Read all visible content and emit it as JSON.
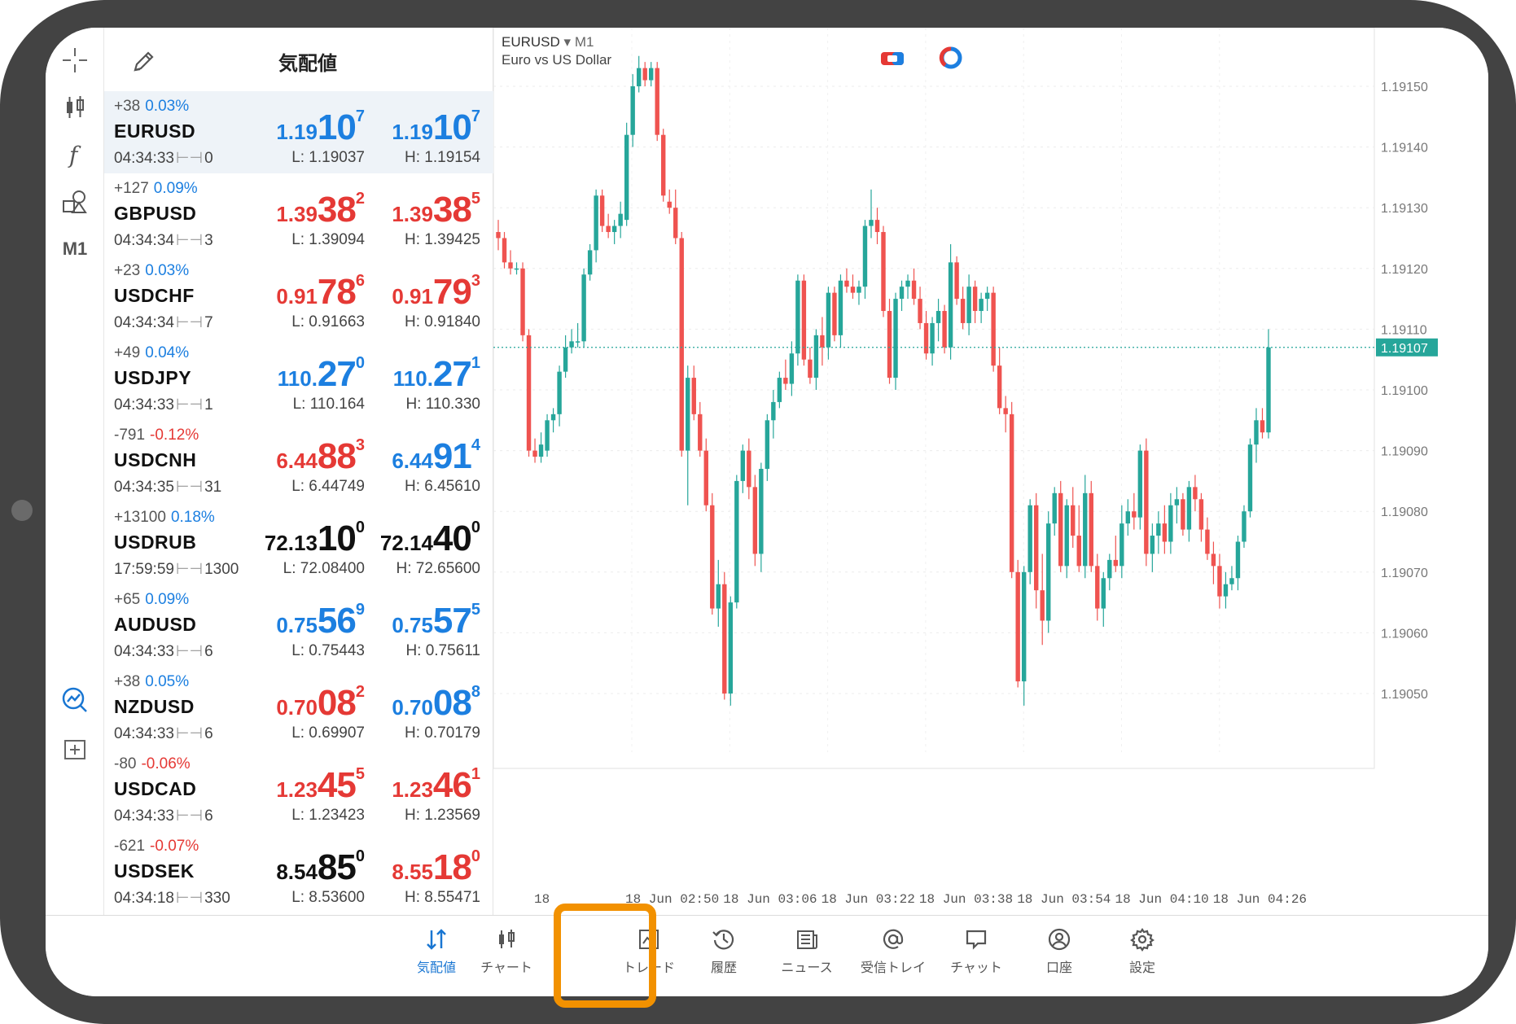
{
  "quotes_panel": {
    "title": "気配値",
    "rows": [
      {
        "change_points": "+38",
        "change_pct": "0.03%",
        "pct_color": "#1c7fe0",
        "symbol": "EURUSD",
        "time": "04:34:33",
        "spread": "0",
        "bid": {
          "small": "1.19",
          "big": "10",
          "sup": "7",
          "color": "#1c7fe0"
        },
        "ask": {
          "small": "1.19",
          "big": "10",
          "sup": "7",
          "color": "#1c7fe0"
        },
        "low": "L: 1.19037",
        "high": "H: 1.19154",
        "selected": true
      },
      {
        "change_points": "+127",
        "change_pct": "0.09%",
        "pct_color": "#1c7fe0",
        "symbol": "GBPUSD",
        "time": "04:34:34",
        "spread": "3",
        "bid": {
          "small": "1.39",
          "big": "38",
          "sup": "2",
          "color": "#e53935"
        },
        "ask": {
          "small": "1.39",
          "big": "38",
          "sup": "5",
          "color": "#e53935"
        },
        "low": "L: 1.39094",
        "high": "H: 1.39425"
      },
      {
        "change_points": "+23",
        "change_pct": "0.03%",
        "pct_color": "#1c7fe0",
        "symbol": "USDCHF",
        "time": "04:34:34",
        "spread": "7",
        "bid": {
          "small": "0.91",
          "big": "78",
          "sup": "6",
          "color": "#e53935"
        },
        "ask": {
          "small": "0.91",
          "big": "79",
          "sup": "3",
          "color": "#e53935"
        },
        "low": "L: 0.91663",
        "high": "H: 0.91840"
      },
      {
        "change_points": "+49",
        "change_pct": "0.04%",
        "pct_color": "#1c7fe0",
        "symbol": "USDJPY",
        "time": "04:34:33",
        "spread": "1",
        "bid": {
          "small": "110.",
          "big": "27",
          "sup": "0",
          "color": "#1c7fe0"
        },
        "ask": {
          "small": "110.",
          "big": "27",
          "sup": "1",
          "color": "#1c7fe0"
        },
        "low": "L: 110.164",
        "high": "H: 110.330"
      },
      {
        "change_points": "-791",
        "change_pct": "-0.12%",
        "pct_color": "#e53935",
        "symbol": "USDCNH",
        "time": "04:34:35",
        "spread": "31",
        "bid": {
          "small": "6.44",
          "big": "88",
          "sup": "3",
          "color": "#e53935"
        },
        "ask": {
          "small": "6.44",
          "big": "91",
          "sup": "4",
          "color": "#1c7fe0"
        },
        "low": "L: 6.44749",
        "high": "H: 6.45610"
      },
      {
        "change_points": "+13100",
        "change_pct": "0.18%",
        "pct_color": "#1c7fe0",
        "symbol": "USDRUB",
        "time": "17:59:59",
        "spread": "1300",
        "bid": {
          "small": "72.13",
          "big": "10",
          "sup": "0",
          "color": "#111111"
        },
        "ask": {
          "small": "72.14",
          "big": "40",
          "sup": "0",
          "color": "#111111"
        },
        "low": "L: 72.08400",
        "high": "H: 72.65600"
      },
      {
        "change_points": "+65",
        "change_pct": "0.09%",
        "pct_color": "#1c7fe0",
        "symbol": "AUDUSD",
        "time": "04:34:33",
        "spread": "6",
        "bid": {
          "small": "0.75",
          "big": "56",
          "sup": "9",
          "color": "#1c7fe0"
        },
        "ask": {
          "small": "0.75",
          "big": "57",
          "sup": "5",
          "color": "#1c7fe0"
        },
        "low": "L: 0.75443",
        "high": "H: 0.75611"
      },
      {
        "change_points": "+38",
        "change_pct": "0.05%",
        "pct_color": "#1c7fe0",
        "symbol": "NZDUSD",
        "time": "04:34:33",
        "spread": "6",
        "bid": {
          "small": "0.70",
          "big": "08",
          "sup": "2",
          "color": "#e53935"
        },
        "ask": {
          "small": "0.70",
          "big": "08",
          "sup": "8",
          "color": "#1c7fe0"
        },
        "low": "L: 0.69907",
        "high": "H: 0.70179"
      },
      {
        "change_points": "-80",
        "change_pct": "-0.06%",
        "pct_color": "#e53935",
        "symbol": "USDCAD",
        "time": "04:34:33",
        "spread": "6",
        "bid": {
          "small": "1.23",
          "big": "45",
          "sup": "5",
          "color": "#e53935"
        },
        "ask": {
          "small": "1.23",
          "big": "46",
          "sup": "1",
          "color": "#e53935"
        },
        "low": "L: 1.23423",
        "high": "H: 1.23569"
      },
      {
        "change_points": "-621",
        "change_pct": "-0.07%",
        "pct_color": "#e53935",
        "symbol": "USDSEK",
        "time": "04:34:18",
        "spread": "330",
        "bid": {
          "small": "8.54",
          "big": "85",
          "sup": "0",
          "color": "#111111"
        },
        "ask": {
          "small": "8.55",
          "big": "18",
          "sup": "0",
          "color": "#e53935"
        },
        "low": "L: 8.53600",
        "high": "H: 8.55471"
      }
    ]
  },
  "toolrail": {
    "timeframe_label": "M1"
  },
  "chart": {
    "symbol": "EURUSD",
    "timeframe": "M1",
    "description": "Euro vs US Dollar",
    "current_price": "1.19107",
    "price_ticks": [
      "1.19150",
      "1.19140",
      "1.19130",
      "1.19120",
      "1.19110",
      "1.19100",
      "1.19090",
      "1.19080",
      "1.19070",
      "1.19060",
      "1.19050"
    ],
    "time_ticks": [
      "18 Jun 02:50",
      "18 Jun 03:06",
      "18 Jun 03:22",
      "18 Jun 03:38",
      "18 Jun 03:54",
      "18 Jun 04:10",
      "18 Jun 04:26"
    ],
    "cut_time_tick": "18",
    "bull_color": "#26a69a",
    "bear_color": "#ef5350"
  },
  "chart_data": {
    "type": "candlestick",
    "y_axis_ticks": [
      1.1905,
      1.1906,
      1.1907,
      1.1908,
      1.1909,
      1.191,
      1.1911,
      1.1912,
      1.1913,
      1.1914,
      1.1915
    ],
    "last_price": 1.19107,
    "candles": [
      [
        1.19126,
        1.19128,
        1.19123,
        1.19125
      ],
      [
        1.19125,
        1.19126,
        1.1912,
        1.19121
      ],
      [
        1.19121,
        1.19123,
        1.19119,
        1.1912
      ],
      [
        1.1912,
        1.19121,
        1.19119,
        1.1912
      ],
      [
        1.1912,
        1.19121,
        1.19108,
        1.19109
      ],
      [
        1.19109,
        1.1911,
        1.19089,
        1.1909
      ],
      [
        1.1909,
        1.19092,
        1.19088,
        1.19089
      ],
      [
        1.19089,
        1.19093,
        1.19088,
        1.19091
      ],
      [
        1.1909,
        1.19096,
        1.19089,
        1.19095
      ],
      [
        1.19095,
        1.19097,
        1.19093,
        1.19096
      ],
      [
        1.19096,
        1.19104,
        1.19094,
        1.19103
      ],
      [
        1.19103,
        1.19109,
        1.19102,
        1.19107
      ],
      [
        1.19107,
        1.1911,
        1.19106,
        1.19108
      ],
      [
        1.19108,
        1.19111,
        1.19107,
        1.19108
      ],
      [
        1.19108,
        1.1912,
        1.19107,
        1.19119
      ],
      [
        1.19119,
        1.19124,
        1.19118,
        1.19123
      ],
      [
        1.19123,
        1.19133,
        1.19121,
        1.19132
      ],
      [
        1.19132,
        1.19133,
        1.19126,
        1.19127
      ],
      [
        1.19127,
        1.19129,
        1.19125,
        1.19126
      ],
      [
        1.19126,
        1.19128,
        1.19124,
        1.19127
      ],
      [
        1.19127,
        1.19131,
        1.19125,
        1.19129
      ],
      [
        1.19128,
        1.19144,
        1.19127,
        1.19142
      ],
      [
        1.19142,
        1.19152,
        1.1914,
        1.1915
      ],
      [
        1.1915,
        1.19155,
        1.19149,
        1.19153
      ],
      [
        1.19153,
        1.19154,
        1.1915,
        1.19151
      ],
      [
        1.19151,
        1.19154,
        1.1915,
        1.19153
      ],
      [
        1.19153,
        1.19154,
        1.19141,
        1.19142
      ],
      [
        1.19142,
        1.19143,
        1.19131,
        1.19132
      ],
      [
        1.19131,
        1.19133,
        1.19129,
        1.1913
      ],
      [
        1.1913,
        1.19133,
        1.19124,
        1.19125
      ],
      [
        1.19125,
        1.19126,
        1.19089,
        1.1909
      ],
      [
        1.1909,
        1.19104,
        1.19081,
        1.19102
      ],
      [
        1.19102,
        1.19104,
        1.19095,
        1.19096
      ],
      [
        1.19096,
        1.19098,
        1.19089,
        1.1909
      ],
      [
        1.1909,
        1.19092,
        1.1908,
        1.19081
      ],
      [
        1.19081,
        1.19083,
        1.19063,
        1.19064
      ],
      [
        1.19064,
        1.19072,
        1.19061,
        1.19068
      ],
      [
        1.19068,
        1.1907,
        1.19049,
        1.1905
      ],
      [
        1.1905,
        1.19066,
        1.19048,
        1.19065
      ],
      [
        1.19065,
        1.19086,
        1.19064,
        1.19085
      ],
      [
        1.19085,
        1.19091,
        1.19083,
        1.1909
      ],
      [
        1.1909,
        1.19092,
        1.19082,
        1.19084
      ],
      [
        1.19084,
        1.19086,
        1.19071,
        1.19073
      ],
      [
        1.19073,
        1.19088,
        1.1907,
        1.19087
      ],
      [
        1.19087,
        1.19096,
        1.19085,
        1.19095
      ],
      [
        1.19095,
        1.191,
        1.19092,
        1.19098
      ],
      [
        1.19098,
        1.19103,
        1.19097,
        1.19102
      ],
      [
        1.19102,
        1.19105,
        1.191,
        1.19101
      ],
      [
        1.19101,
        1.19108,
        1.19099,
        1.19106
      ],
      [
        1.19106,
        1.19119,
        1.19104,
        1.19118
      ],
      [
        1.19118,
        1.19119,
        1.19104,
        1.19105
      ],
      [
        1.19105,
        1.19107,
        1.19101,
        1.19102
      ],
      [
        1.19102,
        1.1911,
        1.191,
        1.19109
      ],
      [
        1.19109,
        1.19112,
        1.19104,
        1.19107
      ],
      [
        1.19107,
        1.19117,
        1.19105,
        1.19116
      ],
      [
        1.19116,
        1.19117,
        1.19108,
        1.19109
      ],
      [
        1.19109,
        1.19119,
        1.19107,
        1.19118
      ],
      [
        1.19118,
        1.1912,
        1.19116,
        1.19117
      ],
      [
        1.19117,
        1.19119,
        1.19115,
        1.19116
      ],
      [
        1.19116,
        1.19118,
        1.19114,
        1.19117
      ],
      [
        1.19117,
        1.19128,
        1.19115,
        1.19127
      ],
      [
        1.19127,
        1.19133,
        1.19125,
        1.19128
      ],
      [
        1.19128,
        1.1913,
        1.19124,
        1.19126
      ],
      [
        1.19126,
        1.19127,
        1.19112,
        1.19113
      ],
      [
        1.19113,
        1.19115,
        1.19101,
        1.19102
      ],
      [
        1.19102,
        1.19116,
        1.191,
        1.19115
      ],
      [
        1.19115,
        1.19118,
        1.19113,
        1.19117
      ],
      [
        1.19117,
        1.19119,
        1.19115,
        1.19118
      ],
      [
        1.19118,
        1.1912,
        1.19114,
        1.19115
      ],
      [
        1.19115,
        1.19117,
        1.1911,
        1.19111
      ],
      [
        1.19111,
        1.19113,
        1.19105,
        1.19106
      ],
      [
        1.19106,
        1.19112,
        1.19104,
        1.19111
      ],
      [
        1.19111,
        1.19115,
        1.19108,
        1.19113
      ],
      [
        1.19113,
        1.19114,
        1.19106,
        1.19107
      ],
      [
        1.19107,
        1.19124,
        1.19105,
        1.19121
      ],
      [
        1.19121,
        1.19122,
        1.19114,
        1.19115
      ],
      [
        1.19115,
        1.19117,
        1.1911,
        1.19111
      ],
      [
        1.19111,
        1.19119,
        1.19109,
        1.19117
      ],
      [
        1.19117,
        1.19118,
        1.19111,
        1.19113
      ],
      [
        1.19113,
        1.19116,
        1.19111,
        1.19115
      ],
      [
        1.19115,
        1.19117,
        1.19113,
        1.19116
      ],
      [
        1.19116,
        1.19117,
        1.19103,
        1.19104
      ],
      [
        1.19104,
        1.19107,
        1.19096,
        1.19097
      ],
      [
        1.19097,
        1.19099,
        1.19093,
        1.19096
      ],
      [
        1.19096,
        1.19098,
        1.19069,
        1.1907
      ],
      [
        1.1907,
        1.19072,
        1.19051,
        1.19052
      ],
      [
        1.19052,
        1.19071,
        1.19048,
        1.1907
      ],
      [
        1.1907,
        1.19082,
        1.19068,
        1.19081
      ],
      [
        1.19081,
        1.19083,
        1.19064,
        1.19067
      ],
      [
        1.19067,
        1.19073,
        1.19058,
        1.19062
      ],
      [
        1.19062,
        1.1908,
        1.1906,
        1.19078
      ],
      [
        1.19078,
        1.19084,
        1.19076,
        1.19083
      ],
      [
        1.19083,
        1.19085,
        1.1907,
        1.19071
      ],
      [
        1.19071,
        1.19082,
        1.19069,
        1.19081
      ],
      [
        1.19081,
        1.19084,
        1.19074,
        1.19076
      ],
      [
        1.19076,
        1.19081,
        1.1907,
        1.19071
      ],
      [
        1.19071,
        1.19086,
        1.19069,
        1.19083
      ],
      [
        1.19083,
        1.19085,
        1.1907,
        1.19071
      ],
      [
        1.19071,
        1.19073,
        1.19062,
        1.19064
      ],
      [
        1.19064,
        1.1907,
        1.19061,
        1.19069
      ],
      [
        1.19069,
        1.19073,
        1.19067,
        1.19072
      ],
      [
        1.19072,
        1.19076,
        1.1907,
        1.19071
      ],
      [
        1.19071,
        1.19081,
        1.19069,
        1.19078
      ],
      [
        1.19078,
        1.19082,
        1.19076,
        1.1908
      ],
      [
        1.1908,
        1.19083,
        1.19077,
        1.19079
      ],
      [
        1.19079,
        1.19091,
        1.19077,
        1.1909
      ],
      [
        1.1909,
        1.19092,
        1.19071,
        1.19073
      ],
      [
        1.19073,
        1.19078,
        1.1907,
        1.19076
      ],
      [
        1.19076,
        1.1908,
        1.19073,
        1.19078
      ],
      [
        1.19078,
        1.19081,
        1.19073,
        1.19075
      ],
      [
        1.19075,
        1.19083,
        1.19073,
        1.19081
      ],
      [
        1.19081,
        1.19084,
        1.19078,
        1.19082
      ],
      [
        1.19082,
        1.19083,
        1.19076,
        1.19077
      ],
      [
        1.19077,
        1.19085,
        1.19075,
        1.19084
      ],
      [
        1.19084,
        1.19086,
        1.1908,
        1.19082
      ],
      [
        1.19082,
        1.19083,
        1.19075,
        1.19077
      ],
      [
        1.19077,
        1.19079,
        1.19072,
        1.19073
      ],
      [
        1.19073,
        1.19075,
        1.19068,
        1.19071
      ],
      [
        1.19071,
        1.19073,
        1.19064,
        1.19066
      ],
      [
        1.19066,
        1.1907,
        1.19064,
        1.19068
      ],
      [
        1.19068,
        1.19071,
        1.19067,
        1.19069
      ],
      [
        1.19069,
        1.19076,
        1.19067,
        1.19075
      ],
      [
        1.19075,
        1.19081,
        1.19074,
        1.1908
      ],
      [
        1.1908,
        1.19092,
        1.19079,
        1.19091
      ],
      [
        1.19091,
        1.19097,
        1.19088,
        1.19095
      ],
      [
        1.19095,
        1.19097,
        1.19092,
        1.19093
      ],
      [
        1.19093,
        1.1911,
        1.19092,
        1.19107
      ]
    ]
  },
  "tabs": [
    {
      "label": "気配値",
      "icon": "quotes-icon"
    },
    {
      "label": "チャート",
      "icon": "chart-icon"
    },
    {
      "label": "トレード",
      "icon": "trade-icon"
    },
    {
      "label": "履歴",
      "icon": "history-icon"
    },
    {
      "label": "ニュース",
      "icon": "news-icon"
    },
    {
      "label": "受信トレイ",
      "icon": "mail-icon"
    },
    {
      "label": "チャット",
      "icon": "chat-icon"
    },
    {
      "label": "口座",
      "icon": "account-icon"
    },
    {
      "label": "設定",
      "icon": "settings-icon"
    }
  ],
  "colors": {
    "accent": "#1976d2",
    "highlight": "#f29100"
  }
}
